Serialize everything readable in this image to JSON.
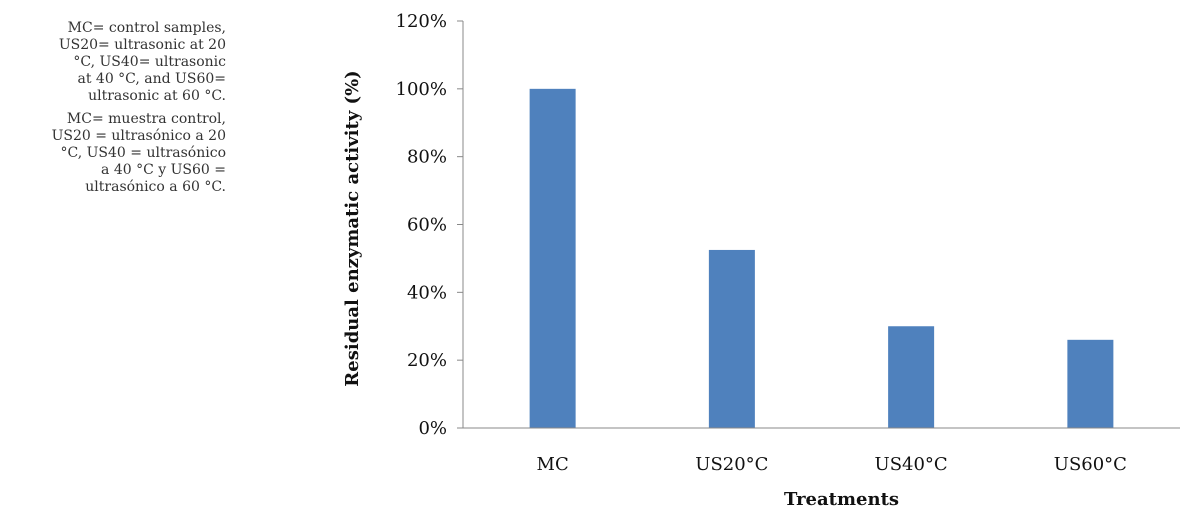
{
  "notes": {
    "english": "MC= control samples,\nUS20= ultrasonic at 20\n°C, US40= ultrasonic\nat 40 °C, and US60=\nultrasonic at 60 °C.",
    "spanish": "MC= muestra control,\nUS20 = ultrasónico a 20\n°C, US40 = ultrasónico\na 40 °C y US60 =\nultrasónico a 60 °C."
  },
  "chart_data": {
    "type": "bar",
    "categories": [
      "MC",
      "US20°C",
      "US40°C",
      "US60°C"
    ],
    "values": [
      1.0,
      0.525,
      0.3,
      0.26
    ],
    "ylabel": "Residual enzymatic activity  (%)",
    "xlabel": "Treatments",
    "ylim": [
      0,
      1.2
    ],
    "yticks": [
      "0%",
      "20%",
      "40%",
      "60%",
      "80%",
      "100%",
      "120%"
    ],
    "grid": false,
    "bar_color": "#4f81bd"
  }
}
